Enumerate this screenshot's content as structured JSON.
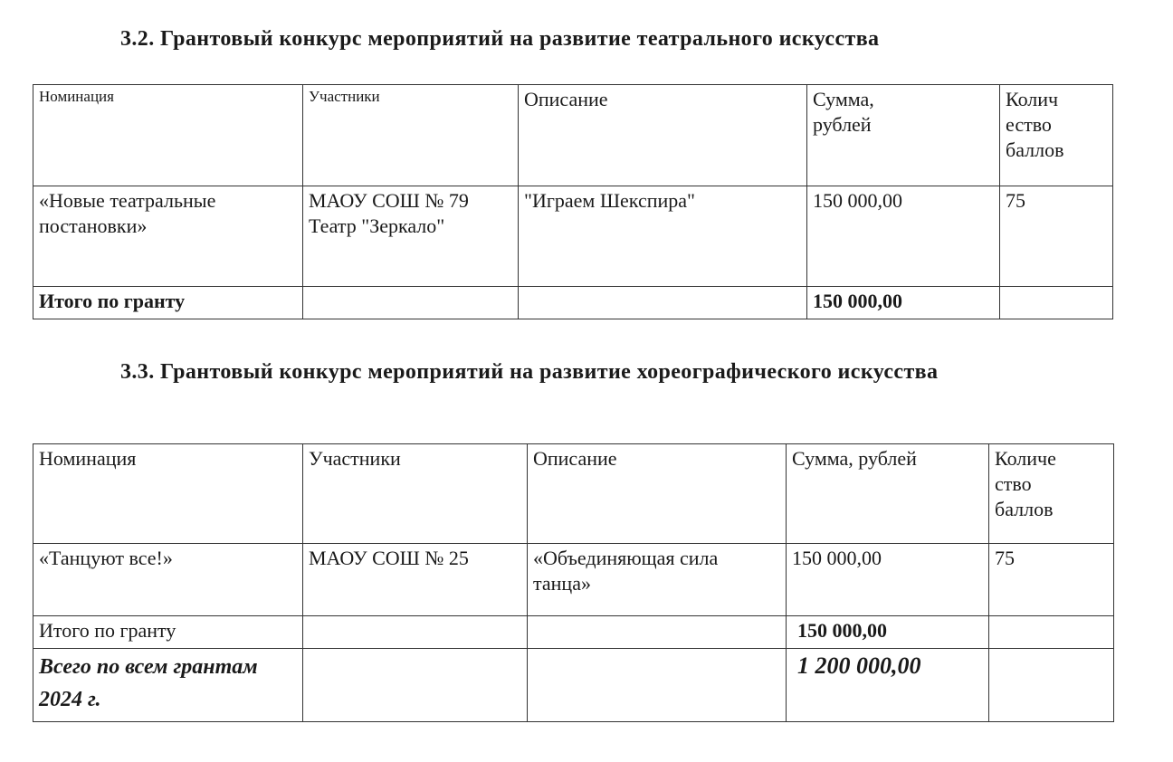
{
  "section1": {
    "title": "3.2.  Грантовый конкурс мероприятий на развитие театрального искусства",
    "headers": [
      "Номинация",
      "Участники",
      "Описание",
      "Сумма, рублей",
      "Количество баллов"
    ],
    "header_lines": {
      "sum": [
        "Сумма,",
        "рублей"
      ],
      "score": [
        "Колич",
        "ество",
        "баллов"
      ]
    },
    "rows": [
      {
        "nomination": "«Новые театральные постановки»",
        "participants": "МАОУ СОШ № 79 Театр \"Зеркало\"",
        "description": "\"Играем Шекспира\"",
        "sum": "150 000,00",
        "score": "75"
      }
    ],
    "total": {
      "label": "Итого по гранту",
      "sum": "150 000,00"
    }
  },
  "section2": {
    "title": "3.3.  Грантовый конкурс мероприятий на развитие хореографического искусства",
    "headers": [
      "Номинация",
      "Участники",
      "Описание",
      "Сумма, рублей",
      "Количество баллов"
    ],
    "header_lines": {
      "score": [
        "Количе",
        "ство",
        "баллов"
      ]
    },
    "rows": [
      {
        "nomination": "«Танцуют все!»",
        "participants": "МАОУ СОШ № 25",
        "description": "«Объединяющая сила танца»",
        "sum": "150 000,00",
        "score": "75"
      }
    ],
    "total": {
      "label": "Итого по гранту",
      "sum": "150 000,00"
    },
    "grand_total": {
      "label": "Всего по всем грантам 2024 г.",
      "sum": "1 200 000,00"
    }
  }
}
